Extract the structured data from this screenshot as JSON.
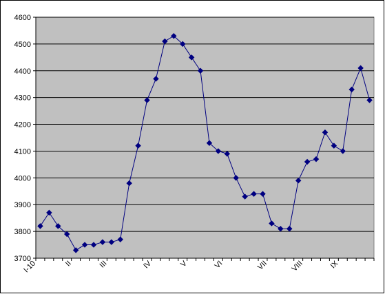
{
  "chart_data": {
    "type": "line",
    "categories": [
      "I-10",
      null,
      null,
      null,
      "II",
      null,
      null,
      null,
      "III",
      null,
      null,
      null,
      null,
      "IV",
      null,
      null,
      null,
      "V",
      null,
      null,
      null,
      "VI",
      null,
      null,
      null,
      null,
      "VII",
      null,
      null,
      null,
      "VIII",
      null,
      null,
      null,
      "IX",
      null,
      null,
      null
    ],
    "series": [
      {
        "color": "#000080",
        "values": [
          3820,
          3870,
          3820,
          3790,
          3730,
          3750,
          3750,
          3760,
          3760,
          3770,
          3980,
          4120,
          4290,
          4370,
          4510,
          4530,
          4500,
          4450,
          4400,
          4130,
          4100,
          4090,
          4000,
          3930,
          3940,
          3940,
          3830,
          3810,
          3810,
          3990,
          4060,
          4070,
          4170,
          4120,
          4100,
          4330,
          4410,
          4290
        ]
      }
    ],
    "ylim": [
      3700,
      4600
    ],
    "yticks": [
      3700,
      3800,
      3900,
      4000,
      4100,
      4200,
      4300,
      4400,
      4500,
      4600
    ],
    "grid": true,
    "plot_background": "#c0c0c0"
  }
}
